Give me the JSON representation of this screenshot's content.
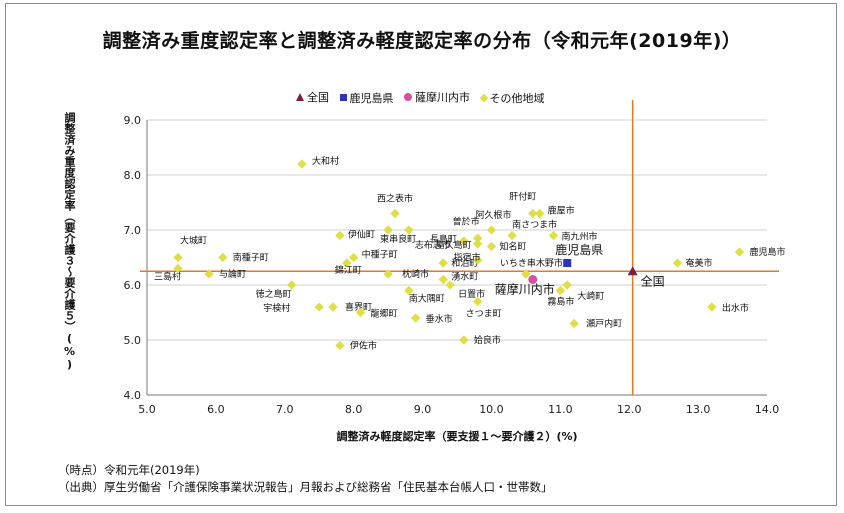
{
  "chart_data": {
    "type": "scatter",
    "title": "調整済み重度認定率と調整済み軽度認定率の分布（令和元年(2019年)）",
    "xlabel": "調整済み軽度認定率（要支援１～要介護２）(%)",
    "ylabel": "調整済み重度認定率（要介護３～要介護５）(%)",
    "xlim": [
      5.0,
      14.0
    ],
    "ylim": [
      4.0,
      9.0
    ],
    "xticks": [
      "5.0",
      "6.0",
      "7.0",
      "8.0",
      "9.0",
      "10.0",
      "11.0",
      "12.0",
      "13.0",
      "14.0"
    ],
    "yticks": [
      "4.0",
      "5.0",
      "6.0",
      "7.0",
      "8.0",
      "9.0"
    ],
    "grid": true,
    "legend_position": "top",
    "legend": [
      "全国",
      "鹿児島県",
      "薩摩川内市",
      "その他地域"
    ],
    "reference_lines": {
      "x": 12.05,
      "y": 6.25,
      "color": "#e87820"
    },
    "series": [
      {
        "name": "全国",
        "marker": "triangle",
        "color": "#7b1f3a",
        "labeled_big": true,
        "points": [
          {
            "label": "全国",
            "x": 12.05,
            "y": 6.25
          }
        ]
      },
      {
        "name": "鹿児島県",
        "marker": "square",
        "color": "#2b35b8",
        "labeled_big": true,
        "points": [
          {
            "label": "鹿児島県",
            "x": 11.1,
            "y": 6.4
          }
        ]
      },
      {
        "name": "薩摩川内市",
        "marker": "circle",
        "color": "#d7519d",
        "labeled_big": true,
        "points": [
          {
            "label": "薩摩川内市",
            "x": 10.6,
            "y": 6.1
          }
        ]
      },
      {
        "name": "その他地域",
        "marker": "diamond",
        "color": "#dede45",
        "labeled_big": false,
        "points": [
          {
            "label": "大和村",
            "x": 7.25,
            "y": 8.2
          },
          {
            "label": "西之表市",
            "x": 8.6,
            "y": 7.3
          },
          {
            "label": "肝付町",
            "x": 10.6,
            "y": 7.3
          },
          {
            "label": "鹿屋市",
            "x": 10.7,
            "y": 7.3
          },
          {
            "label": "志布志市",
            "x": 8.8,
            "y": 7.0
          },
          {
            "label": "阿久根市",
            "x": 10.0,
            "y": 7.0
          },
          {
            "label": "南さつま市",
            "x": 10.3,
            "y": 6.9
          },
          {
            "label": "曽於市",
            "x": 9.8,
            "y": 6.85
          },
          {
            "label": "南九州市",
            "x": 10.9,
            "y": 6.9
          },
          {
            "label": "伊仙町",
            "x": 7.8,
            "y": 6.9
          },
          {
            "label": "東串良町",
            "x": 8.5,
            "y": 7.0
          },
          {
            "label": "長島町",
            "x": 9.6,
            "y": 6.8
          },
          {
            "label": "屋久島町",
            "x": 9.8,
            "y": 6.75
          },
          {
            "label": "知名町",
            "x": 10.0,
            "y": 6.7
          },
          {
            "label": "中種子町",
            "x": 8.0,
            "y": 6.5
          },
          {
            "label": "和泊町",
            "x": 9.3,
            "y": 6.4
          },
          {
            "label": "指宿市",
            "x": 9.8,
            "y": 6.45
          },
          {
            "label": "大城町",
            "x": 5.45,
            "y": 6.5
          },
          {
            "label": "南種子町",
            "x": 6.1,
            "y": 6.5
          },
          {
            "label": "三島村",
            "x": 5.45,
            "y": 6.3
          },
          {
            "label": "与論町",
            "x": 5.9,
            "y": 6.2
          },
          {
            "label": "錦江町",
            "x": 7.9,
            "y": 6.4
          },
          {
            "label": "枕崎市",
            "x": 8.5,
            "y": 6.2
          },
          {
            "label": "湧水町",
            "x": 9.3,
            "y": 6.1
          },
          {
            "label": "いちき串木野市",
            "x": 10.5,
            "y": 6.2
          },
          {
            "label": "奄美市",
            "x": 12.7,
            "y": 6.4
          },
          {
            "label": "鹿児島市",
            "x": 13.6,
            "y": 6.6
          },
          {
            "label": "徳之島町",
            "x": 7.1,
            "y": 6.0
          },
          {
            "label": "日置市",
            "x": 9.4,
            "y": 6.0
          },
          {
            "label": "南大隅町",
            "x": 8.8,
            "y": 5.9
          },
          {
            "label": "大崎町",
            "x": 11.1,
            "y": 6.0
          },
          {
            "label": "霧島市",
            "x": 11.0,
            "y": 5.9
          },
          {
            "label": "宇検村",
            "x": 7.5,
            "y": 5.6
          },
          {
            "label": "喜界町",
            "x": 7.7,
            "y": 5.6
          },
          {
            "label": "龍郷町",
            "x": 8.1,
            "y": 5.5
          },
          {
            "label": "さつま町",
            "x": 9.8,
            "y": 5.7
          },
          {
            "label": "垂水市",
            "x": 8.9,
            "y": 5.4
          },
          {
            "label": "出水市",
            "x": 13.2,
            "y": 5.6
          },
          {
            "label": "瀬戸内町",
            "x": 11.2,
            "y": 5.3
          },
          {
            "label": "姶良市",
            "x": 9.6,
            "y": 5.0
          },
          {
            "label": "伊佐市",
            "x": 7.8,
            "y": 4.9
          }
        ]
      }
    ]
  },
  "notes": {
    "time_label": "（時点）令和元年(2019年)",
    "source_label": "（出典）厚生労働省「介護保険事業状況報告」月報および総務省「住民基本台帳人口・世帯数」"
  }
}
